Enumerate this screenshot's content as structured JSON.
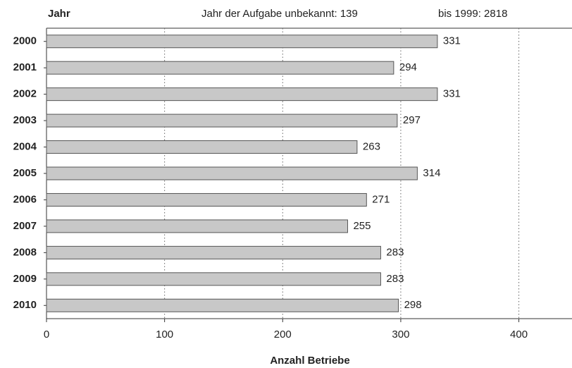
{
  "chart_data": {
    "type": "barh",
    "y_label": "Jahr",
    "annotations": [
      "Jahr der Aufgabe unbekannt: 139",
      "bis 1999: 2818"
    ],
    "x_label": "Anzahl Betriebe",
    "categories": [
      "2000",
      "2001",
      "2002",
      "2003",
      "2004",
      "2005",
      "2006",
      "2007",
      "2008",
      "2009",
      "2010"
    ],
    "values": [
      331,
      294,
      331,
      297,
      263,
      314,
      271,
      255,
      283,
      283,
      298
    ],
    "color": "#c8c8c8",
    "xlim": [
      0,
      445
    ],
    "xticks": [
      0,
      100,
      200,
      300,
      400
    ],
    "grid": true
  }
}
